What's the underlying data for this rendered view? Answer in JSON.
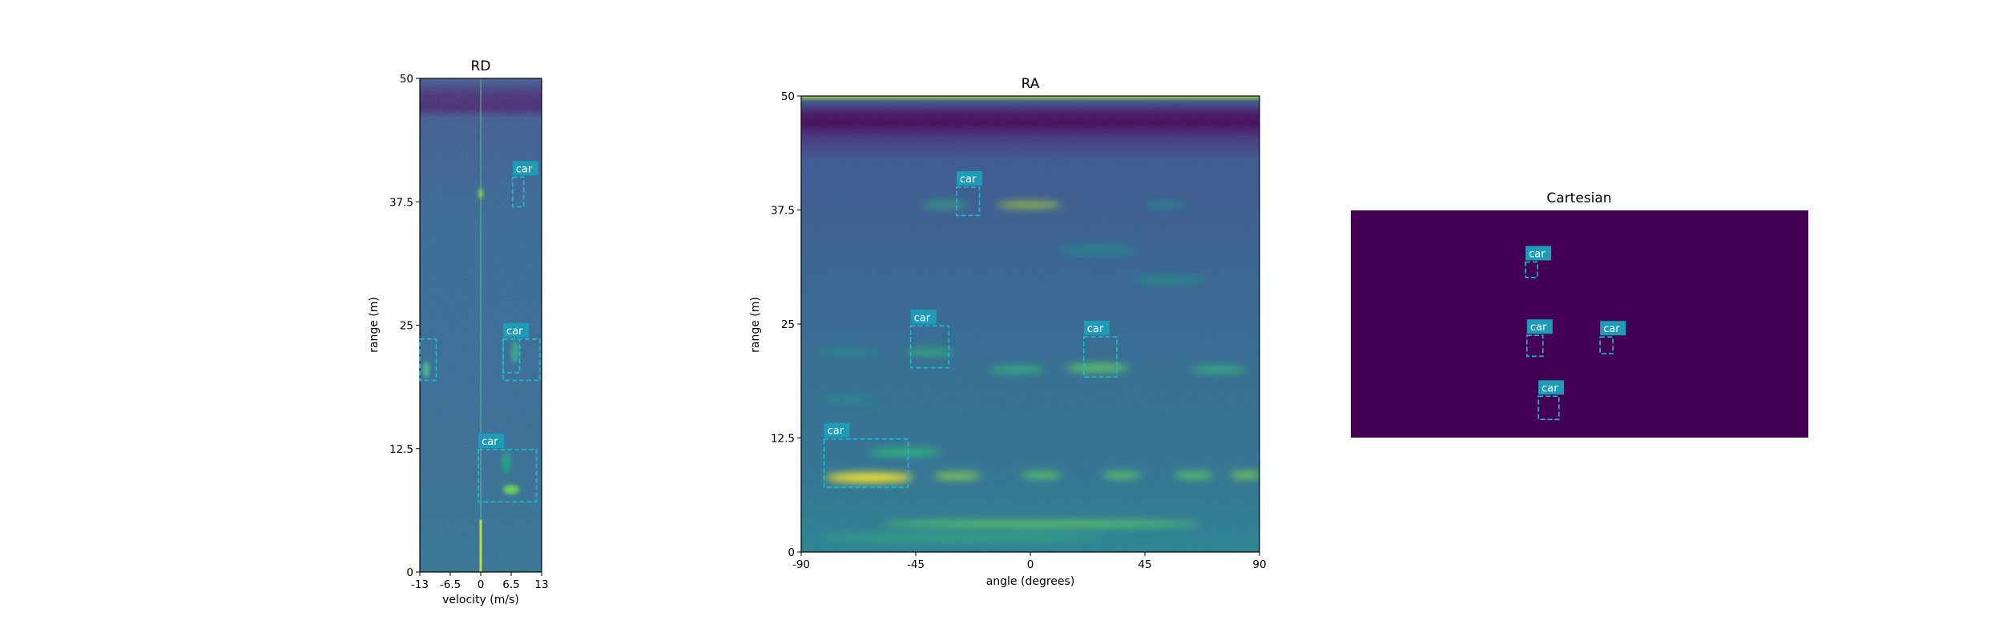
{
  "chart_data": [
    {
      "type": "heatmap",
      "title": "RD",
      "xlabel": "velocity (m/s)",
      "ylabel": "range (m)",
      "xlim": [
        -13,
        13
      ],
      "ylim": [
        0,
        50
      ],
      "xticks": [
        "-13",
        "-6.5",
        "0",
        "6.5",
        "13"
      ],
      "yticks": [
        "0",
        "12.5",
        "25",
        "37.5",
        "50"
      ],
      "colormap": "viridis",
      "annotations": [
        {
          "label": "car",
          "x0": 6.8,
          "x1": 9.2,
          "y0": 37.0,
          "y1": 40.0
        },
        {
          "label": "",
          "x0": -13.0,
          "x1": -9.5,
          "y0": 19.4,
          "y1": 23.6
        },
        {
          "label": "car",
          "x0": 4.8,
          "x1": 8.3,
          "y0": 20.2,
          "y1": 23.6
        },
        {
          "label": "car",
          "x0": 4.8,
          "x1": 12.6,
          "y0": 19.4,
          "y1": 23.6
        },
        {
          "label": "car",
          "x0": -0.5,
          "x1": 11.9,
          "y0": 7.1,
          "y1": 12.4
        }
      ]
    },
    {
      "type": "heatmap",
      "title": "RA",
      "xlabel": "angle (degrees)",
      "ylabel": "range (m)",
      "xlim": [
        -90,
        90
      ],
      "ylim": [
        0,
        50
      ],
      "xticks": [
        "-90",
        "-45",
        "0",
        "45",
        "90"
      ],
      "yticks": [
        "0",
        "12.5",
        "25",
        "37.5",
        "50"
      ],
      "colormap": "viridis",
      "annotations": [
        {
          "label": "car",
          "x0": -29,
          "x1": -20,
          "y0": 36.9,
          "y1": 40.0
        },
        {
          "label": "car",
          "x0": -47,
          "x1": -32,
          "y0": 20.2,
          "y1": 24.8
        },
        {
          "label": "car",
          "x0": 21,
          "x1": 34,
          "y0": 19.2,
          "y1": 23.6
        },
        {
          "label": "car",
          "x0": -81,
          "x1": -48,
          "y0": 7.1,
          "y1": 12.4
        }
      ]
    },
    {
      "type": "heatmap",
      "title": "Cartesian",
      "colormap": "viridis",
      "annotations": [
        {
          "label": "car",
          "x0": 0.382,
          "x1": 0.408,
          "y0": 0.227,
          "y1": 0.295
        },
        {
          "label": "car",
          "x0": 0.385,
          "x1": 0.42,
          "y0": 0.55,
          "y1": 0.642
        },
        {
          "label": "car",
          "x0": 0.545,
          "x1": 0.573,
          "y0": 0.557,
          "y1": 0.63
        },
        {
          "label": "car",
          "x0": 0.41,
          "x1": 0.455,
          "y0": 0.818,
          "y1": 0.92
        }
      ]
    }
  ],
  "colors": {
    "box": "#17becf",
    "label_bg": "#1f9bb8",
    "viridis_dark": "#440154",
    "viridis_mid": "#31688e",
    "viridis_yellow": "#fde725"
  }
}
